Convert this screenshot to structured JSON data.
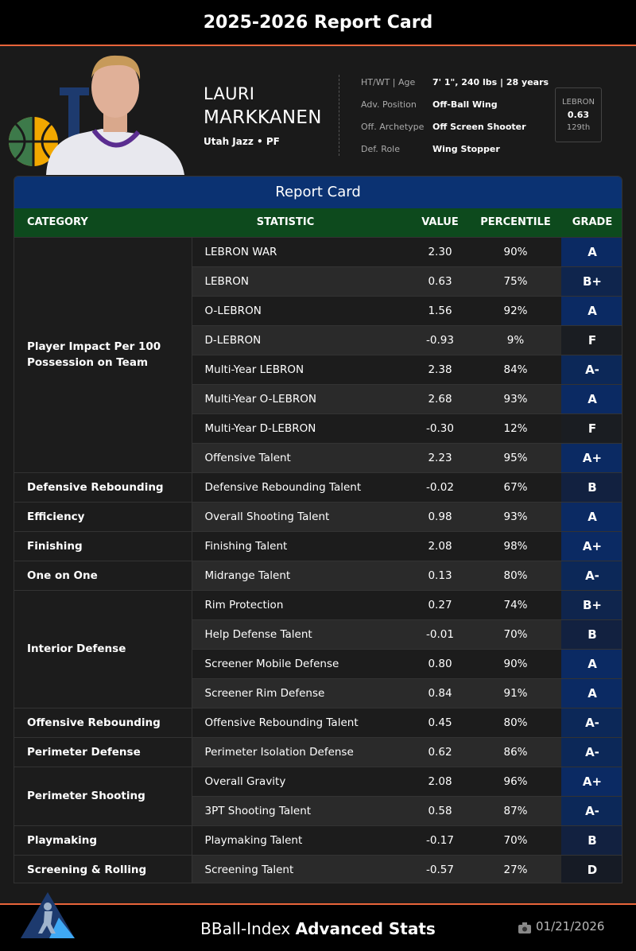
{
  "header": {
    "title": "2025-2026 Report Card"
  },
  "player": {
    "first_name": "LAURI",
    "last_name": "MARKKANEN",
    "team": "Utah Jazz • PF",
    "info": [
      {
        "label": "HT/WT | Age",
        "value": "7' 1\", 240 lbs | 28 years"
      },
      {
        "label": "Adv. Position",
        "value": "Off-Ball Wing"
      },
      {
        "label": "Off. Archetype",
        "value": "Off Screen Shooter"
      },
      {
        "label": "Def. Role",
        "value": "Wing Stopper"
      }
    ],
    "lebron": {
      "label": "LEBRON",
      "value": "0.63",
      "rank": "129th"
    }
  },
  "table": {
    "title": "Report Card",
    "columns": [
      "CATEGORY",
      "STATISTIC",
      "VALUE",
      "PERCENTILE",
      "GRADE"
    ],
    "groups": [
      {
        "category": "Player Impact Per 100 Possession on Team",
        "rows": [
          [
            "LEBRON WAR",
            "2.30",
            "90%",
            "A"
          ],
          [
            "LEBRON",
            "0.63",
            "75%",
            "B+"
          ],
          [
            "O-LEBRON",
            "1.56",
            "92%",
            "A"
          ],
          [
            "D-LEBRON",
            "-0.93",
            "9%",
            "F"
          ],
          [
            "Multi-Year LEBRON",
            "2.38",
            "84%",
            "A-"
          ],
          [
            "Multi-Year O-LEBRON",
            "2.68",
            "93%",
            "A"
          ],
          [
            "Multi-Year D-LEBRON",
            "-0.30",
            "12%",
            "F"
          ],
          [
            "Offensive Talent",
            "2.23",
            "95%",
            "A+"
          ]
        ]
      },
      {
        "category": "Defensive Rebounding",
        "rows": [
          [
            "Defensive Rebounding Talent",
            "-0.02",
            "67%",
            "B"
          ]
        ]
      },
      {
        "category": "Efficiency",
        "rows": [
          [
            "Overall Shooting Talent",
            "0.98",
            "93%",
            "A"
          ]
        ]
      },
      {
        "category": "Finishing",
        "rows": [
          [
            "Finishing Talent",
            "2.08",
            "98%",
            "A+"
          ]
        ]
      },
      {
        "category": "One on One",
        "rows": [
          [
            "Midrange Talent",
            "0.13",
            "80%",
            "A-"
          ]
        ]
      },
      {
        "category": "Interior Defense",
        "rows": [
          [
            "Rim Protection",
            "0.27",
            "74%",
            "B+"
          ],
          [
            "Help Defense Talent",
            "-0.01",
            "70%",
            "B"
          ],
          [
            "Screener Mobile Defense",
            "0.80",
            "90%",
            "A"
          ],
          [
            "Screener Rim Defense",
            "0.84",
            "91%",
            "A"
          ]
        ]
      },
      {
        "category": "Offensive Rebounding",
        "rows": [
          [
            "Offensive Rebounding Talent",
            "0.45",
            "80%",
            "A-"
          ]
        ]
      },
      {
        "category": "Perimeter Defense",
        "rows": [
          [
            "Perimeter Isolation Defense",
            "0.62",
            "86%",
            "A-"
          ]
        ]
      },
      {
        "category": "Perimeter Shooting",
        "rows": [
          [
            "Overall Gravity",
            "2.08",
            "96%",
            "A+"
          ],
          [
            "3PT Shooting Talent",
            "0.58",
            "87%",
            "A-"
          ]
        ]
      },
      {
        "category": "Playmaking",
        "rows": [
          [
            "Playmaking Talent",
            "-0.17",
            "70%",
            "B"
          ]
        ]
      },
      {
        "category": "Screening & Rolling",
        "rows": [
          [
            "Screening Talent",
            "-0.57",
            "27%",
            "D"
          ]
        ]
      }
    ]
  },
  "footer": {
    "brand": "BBall-Index",
    "brand_bold": "Advanced Stats",
    "date": "01/21/2026"
  }
}
